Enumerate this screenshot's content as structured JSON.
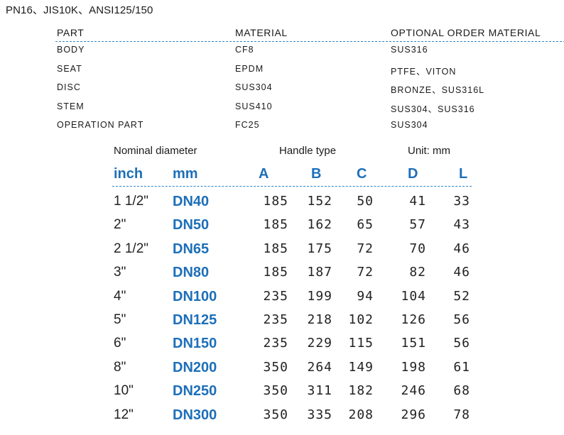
{
  "standard": "PN16、JIS10K、ANSI125/150",
  "materials": {
    "headers": [
      "PART",
      "MATERIAL",
      "OPTIONAL ORDER MATERIAL"
    ],
    "rows": [
      [
        "BODY",
        "CF8",
        "SUS316"
      ],
      [
        "SEAT",
        "EPDM",
        "PTFE、VITON"
      ],
      [
        "DISC",
        "SUS304",
        "BRONZE、SUS316L"
      ],
      [
        "STEM",
        "SUS410",
        "SUS304、SUS316"
      ],
      [
        "OPERATION PART",
        "FC25",
        "SUS304"
      ]
    ]
  },
  "dimensions": {
    "caption_left": "Nominal diameter",
    "caption_mid": "Handle type",
    "caption_right": "Unit: mm",
    "headers": [
      "inch",
      "mm",
      "A",
      "B",
      "C",
      "D",
      "L"
    ],
    "rows": [
      [
        "1 1/2\"",
        "DN40",
        "185",
        "152",
        "50",
        "41",
        "33"
      ],
      [
        "2\"",
        "DN50",
        "185",
        "162",
        "65",
        "57",
        "43"
      ],
      [
        "2 1/2\"",
        "DN65",
        "185",
        "175",
        "72",
        "70",
        "46"
      ],
      [
        "3\"",
        "DN80",
        "185",
        "187",
        "72",
        "82",
        "46"
      ],
      [
        "4\"",
        "DN100",
        "235",
        "199",
        "94",
        "104",
        "52"
      ],
      [
        "5\"",
        "DN125",
        "235",
        "218",
        "102",
        "126",
        "56"
      ],
      [
        "6\"",
        "DN150",
        "235",
        "229",
        "115",
        "151",
        "56"
      ],
      [
        "8\"",
        "DN200",
        "350",
        "264",
        "149",
        "198",
        "61"
      ],
      [
        "10\"",
        "DN250",
        "350",
        "311",
        "182",
        "246",
        "68"
      ],
      [
        "12\"",
        "DN300",
        "350",
        "335",
        "208",
        "296",
        "78"
      ]
    ]
  },
  "colors": {
    "accent": "#1d6fb8",
    "separator": "#2f84c8",
    "text": "#1a1a1a"
  }
}
